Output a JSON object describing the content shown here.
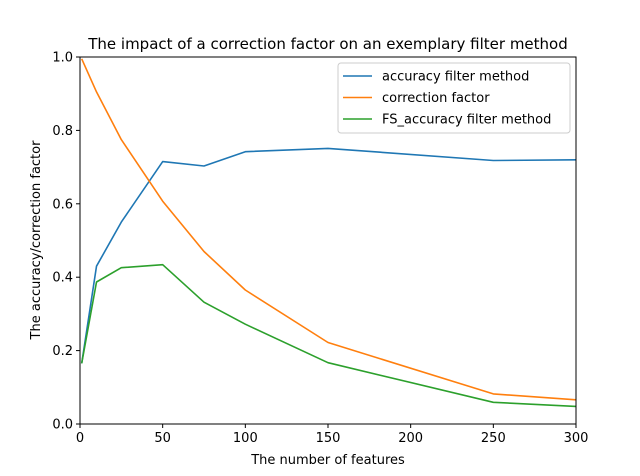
{
  "chart_data": {
    "type": "line",
    "title": "The impact of a correction factor on an exemplary filter method",
    "xlabel": "The number of features",
    "ylabel": "The accuracy/correction factor",
    "xlim": [
      0,
      300
    ],
    "ylim": [
      0,
      1.0
    ],
    "xticks": [
      "0",
      "50",
      "100",
      "150",
      "200",
      "250",
      "300"
    ],
    "yticks": [
      "0.0",
      "0.2",
      "0.4",
      "0.6",
      "0.8",
      "1.0"
    ],
    "grid": false,
    "legend_position": "top-right",
    "series": [
      {
        "name": "accuracy filter method",
        "color": "#1f77b4",
        "x": [
          1,
          10,
          25,
          50,
          75,
          100,
          150,
          250,
          300
        ],
        "y": [
          0.165,
          0.43,
          0.55,
          0.715,
          0.703,
          0.742,
          0.751,
          0.718,
          0.72
        ]
      },
      {
        "name": "correction factor",
        "color": "#ff7f0e",
        "x": [
          1,
          10,
          25,
          50,
          75,
          100,
          150,
          250,
          300
        ],
        "y": [
          0.995,
          0.905,
          0.775,
          0.607,
          0.47,
          0.365,
          0.222,
          0.082,
          0.066
        ]
      },
      {
        "name": "FS_accuracy filter method",
        "color": "#2ca02c",
        "x": [
          1,
          10,
          25,
          50,
          75,
          100,
          150,
          250,
          300
        ],
        "y": [
          0.165,
          0.387,
          0.426,
          0.434,
          0.332,
          0.272,
          0.167,
          0.059,
          0.048
        ]
      }
    ]
  }
}
